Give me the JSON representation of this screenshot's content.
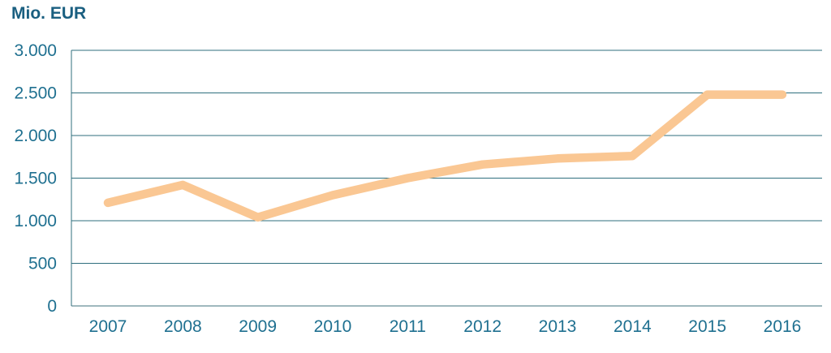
{
  "page": {
    "background_color": "#ffffff"
  },
  "chart_data": {
    "type": "line",
    "title": "Mio. EUR",
    "xlabel": "",
    "ylabel": "Mio. EUR",
    "categories": [
      "2007",
      "2008",
      "2009",
      "2010",
      "2011",
      "2012",
      "2013",
      "2014",
      "2015",
      "2016"
    ],
    "series": [
      {
        "name": "Mio. EUR",
        "values": [
          1210,
          1420,
          1040,
          1300,
          1500,
          1660,
          1730,
          1760,
          2480,
          2480
        ]
      }
    ],
    "ylim": [
      0,
      3000
    ],
    "ytick_step": 500,
    "yticks": [
      {
        "value": 0,
        "label": "0"
      },
      {
        "value": 500,
        "label": "500"
      },
      {
        "value": 1000,
        "label": "1.000"
      },
      {
        "value": 1500,
        "label": "1.500"
      },
      {
        "value": 2000,
        "label": "2.000"
      },
      {
        "value": 2500,
        "label": "2.500"
      },
      {
        "value": 3000,
        "label": "3.000"
      }
    ],
    "grid": true,
    "legend_position": "none",
    "colors": {
      "line": "#FAC793",
      "grid": "#2F6F7E",
      "baseline": "#9FB8BE",
      "tick_text": "#1F7090",
      "title_text": "#1A5F80"
    }
  }
}
